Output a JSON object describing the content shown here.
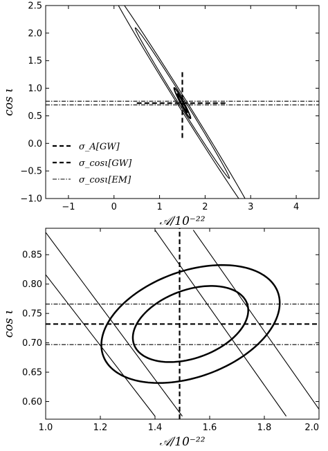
{
  "chart_data": [
    {
      "type": "line",
      "panel": "top",
      "xlabel": "𝒜/10⁻²²",
      "ylabel": "cos ι",
      "xlim": [
        -1.5,
        4.5
      ],
      "ylim": [
        -1.0,
        2.5
      ],
      "xticks": [
        -1,
        0,
        1,
        2,
        3,
        4
      ],
      "xtick_labels": [
        "−1",
        "0",
        "1",
        "2",
        "3",
        "4"
      ],
      "yticks": [
        -1.0,
        -0.5,
        0.0,
        0.5,
        1.0,
        1.5,
        2.0,
        2.5
      ],
      "ytick_labels": [
        "−1.0",
        "−0.5",
        "0.0",
        "0.5",
        "1.0",
        "1.5",
        "2.0",
        "2.5"
      ],
      "legend_position": "lower-left",
      "legend": [
        {
          "label": "σ_A[GW]",
          "style": "dashed"
        },
        {
          "label": "σ_cosι[GW]",
          "style": "dashed"
        },
        {
          "label": "σ_cosι[EM]",
          "style": "dash-dot"
        }
      ],
      "center": [
        1.5,
        0.73
      ],
      "ellipses": [
        {
          "name": "outer-1",
          "cx": 1.5,
          "cy": 0.73,
          "a": 3.05,
          "b": 0.1,
          "angle_deg": 58,
          "lw": 1.1
        },
        {
          "name": "outer-2",
          "cx": 1.5,
          "cy": 0.73,
          "a": 1.95,
          "b": 0.07,
          "angle_deg": 58,
          "lw": 1.1
        },
        {
          "name": "inner-1",
          "cx": 1.5,
          "cy": 0.73,
          "a": 0.38,
          "b": 0.035,
          "angle_deg": 62,
          "lw": 1.9
        },
        {
          "name": "inner-2",
          "cx": 1.5,
          "cy": 0.73,
          "a": 0.23,
          "b": 0.02,
          "angle_deg": 62,
          "lw": 1.9
        }
      ],
      "vertical_dashed": {
        "x": 1.5,
        "y_range": [
          0.1,
          1.3
        ]
      },
      "horizontal_dashed": {
        "y": 0.73,
        "x_range": [
          0.5,
          2.5
        ]
      },
      "horizontal_dashdot": [
        {
          "y": 0.765,
          "x_range": [
            -1.5,
            4.5
          ]
        },
        {
          "y": 0.698,
          "x_range": [
            -1.5,
            4.5
          ]
        }
      ]
    },
    {
      "type": "line",
      "panel": "bottom",
      "xlabel": "𝒜/10⁻²²",
      "ylabel": "cos ι",
      "xlim": [
        1.0,
        2.0
      ],
      "ylim": [
        0.57,
        0.895
      ],
      "xticks": [
        1.0,
        1.2,
        1.4,
        1.6,
        1.8,
        2.0
      ],
      "xtick_labels": [
        "1.0",
        "1.2",
        "1.4",
        "1.6",
        "1.8",
        "2.0"
      ],
      "yticks": [
        0.6,
        0.65,
        0.7,
        0.75,
        0.8,
        0.85
      ],
      "ytick_labels": [
        "0.60",
        "0.65",
        "0.70",
        "0.75",
        "0.80",
        "0.85"
      ],
      "ellipses": [
        {
          "name": "inner-outer",
          "cx": 1.53,
          "cy": 0.732,
          "rx": 0.34,
          "ry": 0.09,
          "angle_deg": 20,
          "lw": 2.5
        },
        {
          "name": "inner-inner",
          "cx": 1.53,
          "cy": 0.732,
          "rx": 0.22,
          "ry": 0.058,
          "angle_deg": 20,
          "lw": 2.5
        }
      ],
      "diagonal_lines": [
        {
          "points": [
            [
              1.0,
              0.888
            ],
            [
              1.5,
              0.575
            ]
          ]
        },
        {
          "points": [
            [
              1.0,
              0.816
            ],
            [
              1.4,
              0.575
            ]
          ]
        },
        {
          "points": [
            [
              1.4,
              0.892
            ],
            [
              1.88,
              0.575
            ]
          ]
        },
        {
          "points": [
            [
              1.54,
              0.892
            ],
            [
              2.0,
              0.587
            ]
          ]
        }
      ],
      "vertical_dashed": {
        "x": 1.49
      },
      "horizontal_dashed": {
        "y": 0.732
      },
      "horizontal_dashdot": [
        {
          "y": 0.766
        },
        {
          "y": 0.697
        }
      ]
    }
  ]
}
